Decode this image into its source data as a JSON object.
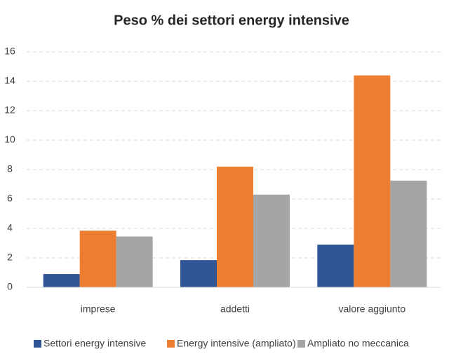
{
  "chart_data": {
    "type": "bar",
    "title": "Peso % dei settori energy intensive",
    "categories": [
      "imprese",
      "addetti",
      "valore aggiunto"
    ],
    "series": [
      {
        "name": "Settori energy intensive",
        "color": "#2f5597",
        "values": [
          0.9,
          1.85,
          2.9
        ]
      },
      {
        "name": "Energy intensive (ampliato)",
        "color": "#ed7d31",
        "values": [
          3.85,
          8.2,
          14.4
        ]
      },
      {
        "name": "Ampliato no meccanica",
        "color": "#a5a5a5",
        "values": [
          3.45,
          6.3,
          7.25
        ]
      }
    ],
    "ylim": [
      0,
      16
    ],
    "yticks": [
      0,
      2,
      4,
      6,
      8,
      10,
      12,
      14,
      16
    ],
    "grid": true,
    "legend": "bottom"
  }
}
